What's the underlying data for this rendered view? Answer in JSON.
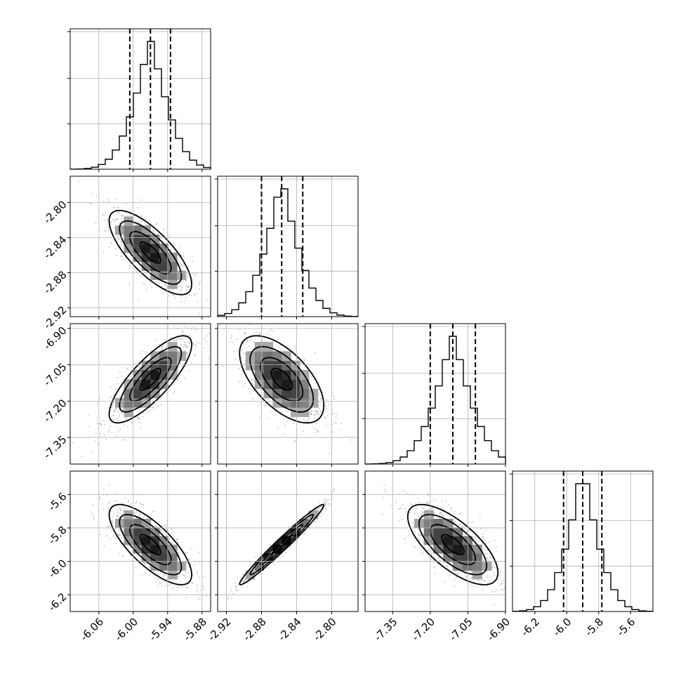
{
  "chart_data": {
    "type": "corner",
    "grid": true,
    "parameters": [
      {
        "mean": -5.97,
        "sd": 0.036,
        "quantiles": [
          -6.006,
          -5.97,
          -5.935
        ],
        "xlim": [
          -6.11,
          -5.865
        ],
        "ticks": [
          "-6.06",
          "-6.00",
          "-5.94",
          "-5.88"
        ]
      },
      {
        "mean": -2.857,
        "sd": 0.024,
        "quantiles": [
          -2.88,
          -2.857,
          -2.833
        ],
        "xlim": [
          -2.93,
          -2.77
        ],
        "ticks": [
          "-2.92",
          "-2.88",
          "-2.84",
          "-2.80"
        ]
      },
      {
        "mean": -7.11,
        "sd": 0.09,
        "quantiles": [
          -7.2,
          -7.11,
          -7.02
        ],
        "xlim": [
          -7.46,
          -6.9
        ],
        "ticks": [
          "-7.35",
          "-7.20",
          "-7.05",
          "-6.90"
        ]
      },
      {
        "mean": -5.9,
        "sd": 0.12,
        "quantiles": [
          -6.02,
          -5.9,
          -5.78
        ],
        "xlim": [
          -6.34,
          -5.46
        ],
        "ticks": [
          "-6.2",
          "-6.0",
          "-5.8",
          "-5.6"
        ]
      }
    ],
    "correlations": [
      {
        "row": 1,
        "col": 0,
        "rho": -0.75
      },
      {
        "row": 2,
        "col": 0,
        "rho": 0.8
      },
      {
        "row": 2,
        "col": 1,
        "rho": -0.6
      },
      {
        "row": 3,
        "col": 0,
        "rho": -0.75
      },
      {
        "row": 3,
        "col": 1,
        "rho": 0.98
      },
      {
        "row": 3,
        "col": 2,
        "rho": -0.7
      }
    ],
    "ylim_offdiag": {
      "1": [
        -2.93,
        -2.77
      ],
      "2": [
        -7.46,
        -6.88
      ],
      "3": [
        -6.3,
        -5.46
      ]
    },
    "quantile_levels": [
      0.16,
      0.5,
      0.84
    ],
    "contour_levels_sigma": [
      0.5,
      1.0,
      1.5,
      2.0
    ]
  }
}
